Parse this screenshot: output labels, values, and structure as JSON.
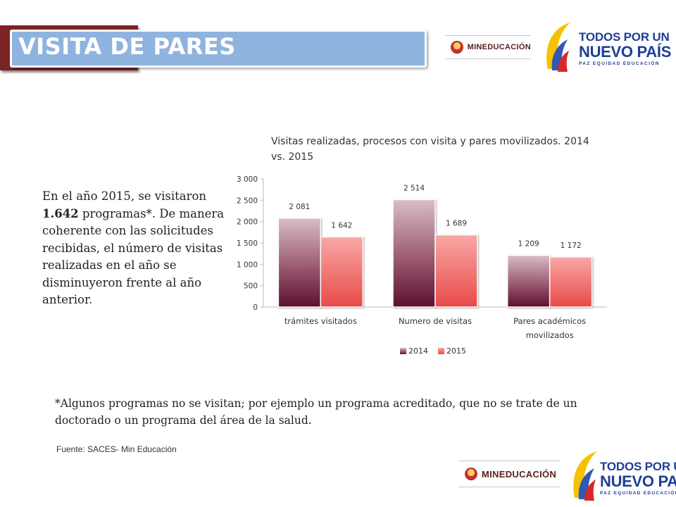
{
  "header": {
    "title": "VISITA DE PARES",
    "logo_mineducacion": "MINEDUCACIÓN",
    "logo_tpun_line1": "TODOS POR UN",
    "logo_tpun_line2": "NUEVO PAÍS",
    "logo_tpun_tagline": "PAZ EQUIDAD EDUCACIÓN"
  },
  "body": {
    "paragraph_1": "En el año 2015, se visitaron",
    "paragraph_bold": "1.642",
    "paragraph_2": " programas*. De manera coherente con las solicitudes recibidas, el número de visitas realizadas en el año se disminuyeron frente al año anterior.",
    "footnote": "*Algunos programas no se visitan; por ejemplo un programa acreditado, que no se trate de un doctorado o un programa del área de la salud.",
    "source": "Fuente: SACES- Min Educación"
  },
  "chart_data": {
    "type": "bar",
    "title": "Visitas realizadas, procesos con visita y pares movilizados. 2014 vs. 2015",
    "categories": [
      "trámites visitados",
      "Numero de visitas",
      "Pares académicos movilizados"
    ],
    "series": [
      {
        "name": "2014",
        "values": [
          2081,
          2514,
          1209
        ],
        "labels": [
          "2 081",
          "2 514",
          "1 209"
        ]
      },
      {
        "name": "2015",
        "values": [
          1642,
          1689,
          1172
        ],
        "labels": [
          "1 642",
          "1 689",
          "1 172"
        ]
      }
    ],
    "ylim": [
      0,
      3000
    ],
    "yticks": [
      0,
      500,
      1000,
      1500,
      2000,
      2500,
      3000
    ],
    "ytick_labels": [
      "0",
      "500",
      "1 000",
      "1 500",
      "2 000",
      "2 500",
      "3 000"
    ],
    "grid": false,
    "legend_position": "bottom",
    "colors": {
      "2014": "#8a3a52",
      "2015": "#e8504f"
    }
  }
}
